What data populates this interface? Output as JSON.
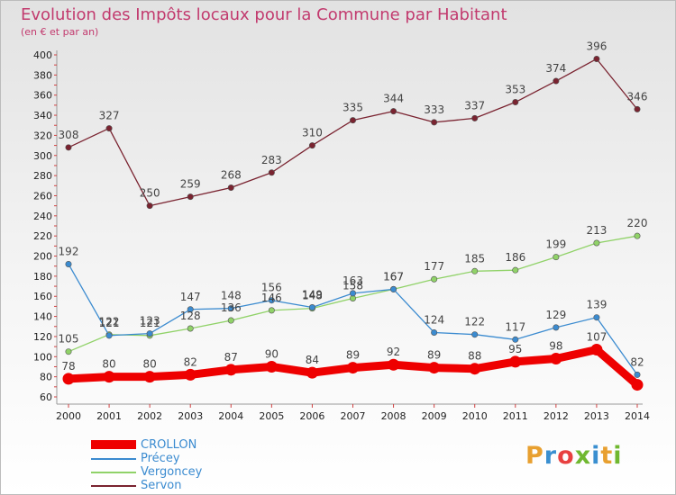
{
  "header": {
    "title": "Evolution des Impôts locaux pour la Commune par Habitant",
    "subtitle": "(en € et par an)"
  },
  "brand": {
    "name": "Proxiti",
    "letter_colors": [
      "#e8a030",
      "#3a8fd0",
      "#e84040",
      "#70b830",
      "#3a8fd0",
      "#e8a030",
      "#70b830"
    ]
  },
  "chart_data": {
    "type": "line",
    "title": "Evolution des Impôts locaux pour la Commune par Habitant",
    "subtitle": "(en € et par an)",
    "xlabel": "",
    "ylabel": "",
    "x": [
      "2000",
      "2001",
      "2002",
      "2003",
      "2004",
      "2005",
      "2006",
      "2007",
      "2008",
      "2009",
      "2010",
      "2011",
      "2012",
      "2013",
      "2014"
    ],
    "ylim": [
      60,
      400
    ],
    "yticks": [
      60,
      80,
      100,
      120,
      140,
      160,
      180,
      200,
      220,
      240,
      260,
      280,
      300,
      320,
      340,
      360,
      380,
      400
    ],
    "grid": false,
    "legend_position": "bottom-left",
    "series": [
      {
        "name": "CROLLON",
        "color": "#ee0000",
        "values": [
          78,
          80,
          80,
          82,
          87,
          90,
          84,
          89,
          92,
          89,
          88,
          95,
          98,
          107,
          72
        ],
        "labels": [
          "78",
          "80",
          "80",
          "82",
          "87",
          "90",
          "84",
          "89",
          "92",
          "89",
          "88",
          "95",
          "98",
          "107",
          ""
        ]
      },
      {
        "name": "Précey",
        "color": "#3b8bd0",
        "values": [
          192,
          121,
          123,
          147,
          148,
          156,
          149,
          163,
          167,
          124,
          122,
          117,
          129,
          139,
          82
        ],
        "labels": [
          "192",
          "121",
          "123",
          "147",
          "148",
          "156",
          "149",
          "163",
          "167",
          "124",
          "122",
          "117",
          "129",
          "139",
          "82"
        ]
      },
      {
        "name": "Vergoncey",
        "color": "#90d268",
        "values": [
          105,
          122,
          121,
          128,
          136,
          146,
          148,
          158,
          167,
          177,
          185,
          186,
          199,
          213,
          220
        ],
        "labels": [
          "105",
          "122",
          "121",
          "128",
          "136",
          "146",
          "148",
          "158",
          "167",
          "177",
          "185",
          "186",
          "199",
          "213",
          "220"
        ]
      },
      {
        "name": "Servon",
        "color": "#7a2330",
        "values": [
          308,
          327,
          250,
          259,
          268,
          283,
          310,
          335,
          344,
          333,
          337,
          353,
          374,
          396,
          346
        ],
        "labels": [
          "308",
          "327",
          "250",
          "259",
          "268",
          "283",
          "310",
          "335",
          "344",
          "333",
          "337",
          "353",
          "374",
          "396",
          "346"
        ]
      }
    ]
  },
  "legend": {
    "items": [
      {
        "label": "CROLLON",
        "color": "#ee0000"
      },
      {
        "label": "Précey",
        "color": "#3b8bd0"
      },
      {
        "label": "Vergoncey",
        "color": "#90d268"
      },
      {
        "label": "Servon",
        "color": "#7a2330"
      }
    ]
  }
}
